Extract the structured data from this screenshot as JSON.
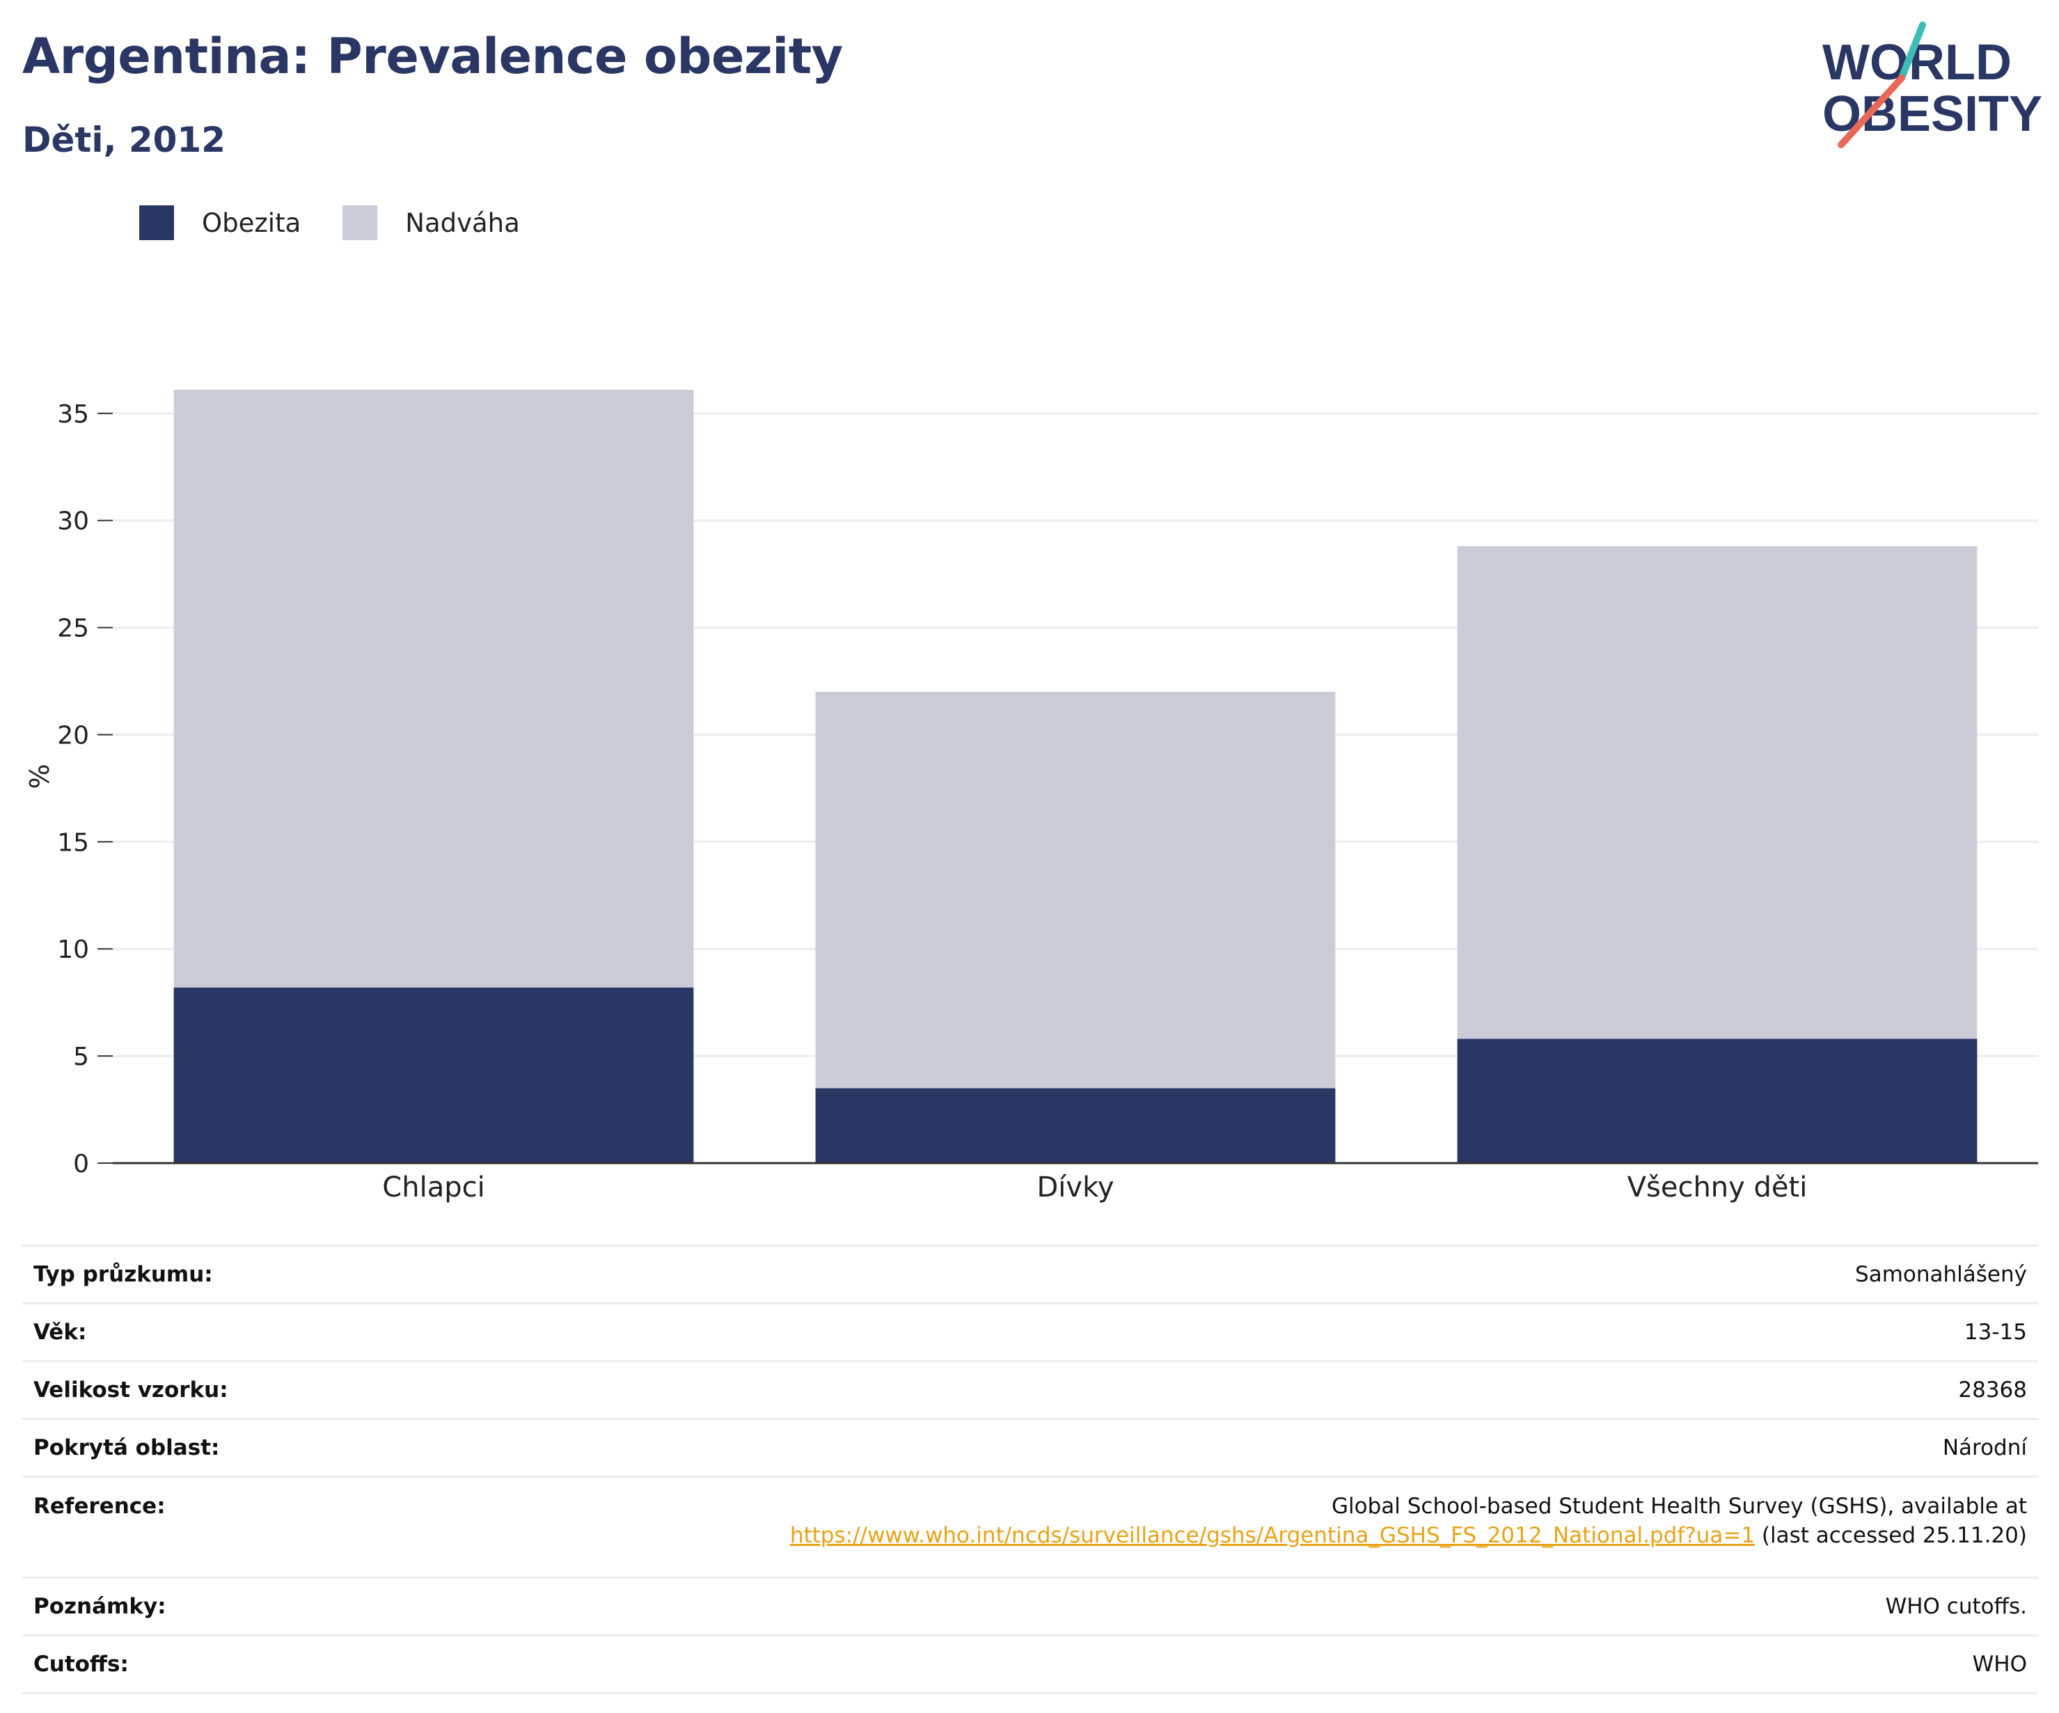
{
  "header": {
    "title": "Argentina: Prevalence obezity",
    "subtitle": "Děti, 2012"
  },
  "logo": {
    "line1": "WORLD",
    "line2": "OBESITY",
    "accent_teal": "#3dbdb6",
    "accent_coral": "#e8685a",
    "text_color": "#2a3663"
  },
  "legend": {
    "items": [
      {
        "label": "Obezita",
        "color": "#2a3663"
      },
      {
        "label": "Nadváha",
        "color": "#cacdd8"
      }
    ]
  },
  "chart_data": {
    "type": "bar",
    "stacked": true,
    "categories": [
      "Chlapci",
      "Dívky",
      "Všechny děti"
    ],
    "series": [
      {
        "name": "Obezita",
        "color": "#2a3663",
        "values": [
          8.2,
          3.5,
          5.8
        ]
      },
      {
        "name": "Nadváha",
        "color": "#cacdd8",
        "values": [
          27.9,
          18.5,
          23.0
        ]
      }
    ],
    "totals": [
      36.1,
      22.0,
      28.8
    ],
    "ylabel": "%",
    "ylim": [
      0,
      36.1
    ],
    "yticks": [
      0,
      5,
      10,
      15,
      20,
      25,
      30,
      35
    ],
    "grid": true,
    "legend_position": "top-left"
  },
  "info": {
    "rows": [
      {
        "key": "Typ průzkumu:",
        "value": "Samonahlášený"
      },
      {
        "key": "Věk:",
        "value": "13-15"
      },
      {
        "key": "Velikost vzorku:",
        "value": "28368"
      },
      {
        "key": "Pokrytá oblast:",
        "value": "Národní"
      },
      {
        "key": "Poznámky:",
        "value": "WHO cutoffs."
      },
      {
        "key": "Cutoffs:",
        "value": "WHO"
      }
    ],
    "reference": {
      "key": "Reference:",
      "line1": "Global School-based Student Health Survey (GSHS), available at",
      "link": "https://www.who.int/ncds/surveillance/gshs/Argentina_GSHS_FS_2012_National.pdf?ua=1",
      "suffix": " (last accessed 25.11.20)"
    }
  }
}
